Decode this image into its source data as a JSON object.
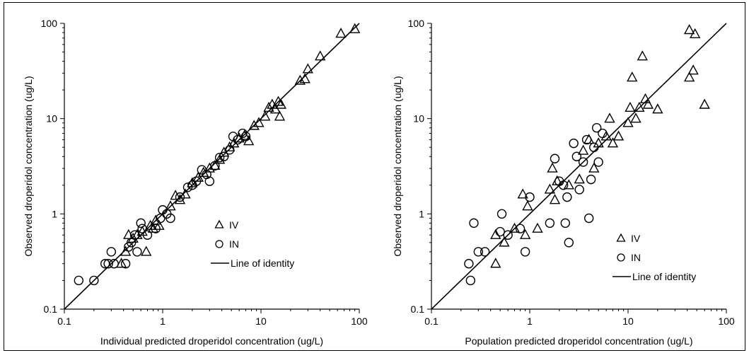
{
  "chart_data": [
    {
      "type": "scatter",
      "xscale": "log",
      "yscale": "log",
      "xlim": [
        0.1,
        100
      ],
      "ylim": [
        0.1,
        100
      ],
      "xticks": [
        "0.1",
        "1",
        "10",
        "100"
      ],
      "yticks": [
        "0.1",
        "1",
        "10",
        "100"
      ],
      "xlabel": "Individual predicted droperidol concentration (ug/L)",
      "ylabel": "Observed droperidol concentration (ug/L)",
      "grid": false,
      "legend_position": "lower-right",
      "series": [
        {
          "name": "IV",
          "marker": "triangle",
          "points": [
            [
              0.38,
              0.3
            ],
            [
              0.42,
              0.4
            ],
            [
              0.45,
              0.6
            ],
            [
              0.5,
              0.55
            ],
            [
              0.55,
              0.6
            ],
            [
              0.62,
              0.65
            ],
            [
              0.68,
              0.4
            ],
            [
              0.75,
              0.75
            ],
            [
              0.8,
              0.7
            ],
            [
              0.85,
              0.85
            ],
            [
              0.92,
              0.75
            ],
            [
              1.2,
              1.2
            ],
            [
              1.35,
              1.55
            ],
            [
              1.5,
              1.4
            ],
            [
              1.7,
              1.6
            ],
            [
              2.0,
              2.1
            ],
            [
              2.3,
              2.4
            ],
            [
              2.6,
              2.7
            ],
            [
              3.0,
              3.0
            ],
            [
              3.4,
              3.2
            ],
            [
              3.8,
              3.7
            ],
            [
              4.2,
              4.4
            ],
            [
              4.8,
              5.0
            ],
            [
              5.3,
              5.5
            ],
            [
              6.0,
              6.2
            ],
            [
              6.8,
              6.6
            ],
            [
              7.5,
              5.8
            ],
            [
              8.5,
              8.4
            ],
            [
              9.5,
              9.0
            ],
            [
              11,
              10.5
            ],
            [
              12,
              13
            ],
            [
              13,
              14
            ],
            [
              14,
              12.5
            ],
            [
              15,
              15
            ],
            [
              15.5,
              10.5
            ],
            [
              16,
              14
            ],
            [
              25,
              25
            ],
            [
              28,
              26
            ],
            [
              30,
              33
            ],
            [
              40,
              45
            ],
            [
              65,
              78
            ],
            [
              90,
              87
            ]
          ]
        },
        {
          "name": "IN",
          "marker": "circle",
          "points": [
            [
              0.14,
              0.2
            ],
            [
              0.2,
              0.2
            ],
            [
              0.26,
              0.3
            ],
            [
              0.28,
              0.3
            ],
            [
              0.3,
              0.4
            ],
            [
              0.32,
              0.3
            ],
            [
              0.42,
              0.3
            ],
            [
              0.45,
              0.45
            ],
            [
              0.48,
              0.5
            ],
            [
              0.52,
              0.6
            ],
            [
              0.55,
              0.4
            ],
            [
              0.6,
              0.8
            ],
            [
              0.62,
              0.7
            ],
            [
              0.7,
              0.6
            ],
            [
              0.85,
              0.7
            ],
            [
              0.95,
              0.9
            ],
            [
              1.0,
              1.1
            ],
            [
              1.1,
              1.0
            ],
            [
              1.2,
              0.9
            ],
            [
              1.5,
              1.5
            ],
            [
              1.8,
              1.9
            ],
            [
              2.0,
              2.0
            ],
            [
              2.2,
              2.2
            ],
            [
              2.5,
              2.9
            ],
            [
              2.8,
              2.6
            ],
            [
              3.0,
              2.2
            ],
            [
              3.4,
              3.2
            ],
            [
              3.8,
              3.9
            ],
            [
              4.2,
              4.0
            ],
            [
              4.8,
              4.7
            ],
            [
              5.2,
              6.5
            ],
            [
              5.8,
              6.0
            ],
            [
              6.5,
              7.0
            ],
            [
              7.0,
              6.5
            ]
          ]
        },
        {
          "name": "Line of identity",
          "type": "line",
          "x": [
            0.1,
            100
          ],
          "y": [
            0.1,
            100
          ]
        }
      ]
    },
    {
      "type": "scatter",
      "xscale": "log",
      "yscale": "log",
      "xlim": [
        0.1,
        100
      ],
      "ylim": [
        0.1,
        100
      ],
      "xticks": [
        "0.1",
        "1",
        "10",
        "100"
      ],
      "yticks": [
        "0.1",
        "1",
        "10",
        "100"
      ],
      "xlabel": "Population predicted droperidol concentration (ug/L)",
      "ylabel": "Observed droperidol concentration (ug/L)",
      "grid": false,
      "legend_position": "lower-right",
      "series": [
        {
          "name": "IV",
          "marker": "triangle",
          "points": [
            [
              0.45,
              0.3
            ],
            [
              0.45,
              0.6
            ],
            [
              0.55,
              0.5
            ],
            [
              0.7,
              0.7
            ],
            [
              0.85,
              1.6
            ],
            [
              0.9,
              0.6
            ],
            [
              0.95,
              1.2
            ],
            [
              1.2,
              0.7
            ],
            [
              1.6,
              1.8
            ],
            [
              1.7,
              3.0
            ],
            [
              1.8,
              1.4
            ],
            [
              1.9,
              2.2
            ],
            [
              2.5,
              2.0
            ],
            [
              3.2,
              2.3
            ],
            [
              3.5,
              4.6
            ],
            [
              4.0,
              6.0
            ],
            [
              4.5,
              3.0
            ],
            [
              5.0,
              5.5
            ],
            [
              6.0,
              6.5
            ],
            [
              6.5,
              10
            ],
            [
              7.0,
              5.5
            ],
            [
              8.0,
              6.5
            ],
            [
              10,
              9
            ],
            [
              10.5,
              13
            ],
            [
              11,
              27
            ],
            [
              12,
              10
            ],
            [
              13,
              13
            ],
            [
              14,
              45
            ],
            [
              15,
              16
            ],
            [
              16,
              14
            ],
            [
              20,
              12.5
            ],
            [
              42,
              27
            ],
            [
              42,
              85
            ],
            [
              46,
              32
            ],
            [
              48,
              77
            ],
            [
              60,
              14
            ]
          ]
        },
        {
          "name": "IN",
          "marker": "circle",
          "points": [
            [
              0.24,
              0.3
            ],
            [
              0.25,
              0.2
            ],
            [
              0.27,
              0.8
            ],
            [
              0.3,
              0.4
            ],
            [
              0.35,
              0.4
            ],
            [
              0.5,
              0.65
            ],
            [
              0.52,
              1.0
            ],
            [
              0.6,
              0.6
            ],
            [
              0.8,
              0.7
            ],
            [
              0.9,
              0.4
            ],
            [
              1.0,
              1.5
            ],
            [
              1.6,
              0.8
            ],
            [
              1.8,
              3.8
            ],
            [
              2.0,
              2.2
            ],
            [
              2.2,
              2.0
            ],
            [
              2.3,
              0.8
            ],
            [
              2.4,
              1.5
            ],
            [
              2.5,
              0.5
            ],
            [
              2.8,
              5.5
            ],
            [
              3.0,
              4.0
            ],
            [
              3.2,
              1.8
            ],
            [
              3.5,
              3.5
            ],
            [
              3.8,
              6.0
            ],
            [
              4.0,
              0.9
            ],
            [
              4.2,
              2.3
            ],
            [
              4.5,
              5.0
            ],
            [
              4.8,
              8.0
            ],
            [
              5.0,
              3.5
            ],
            [
              5.5,
              7.0
            ]
          ]
        },
        {
          "name": "Line of identity",
          "type": "line",
          "x": [
            0.1,
            100
          ],
          "y": [
            0.1,
            100
          ]
        }
      ]
    }
  ]
}
